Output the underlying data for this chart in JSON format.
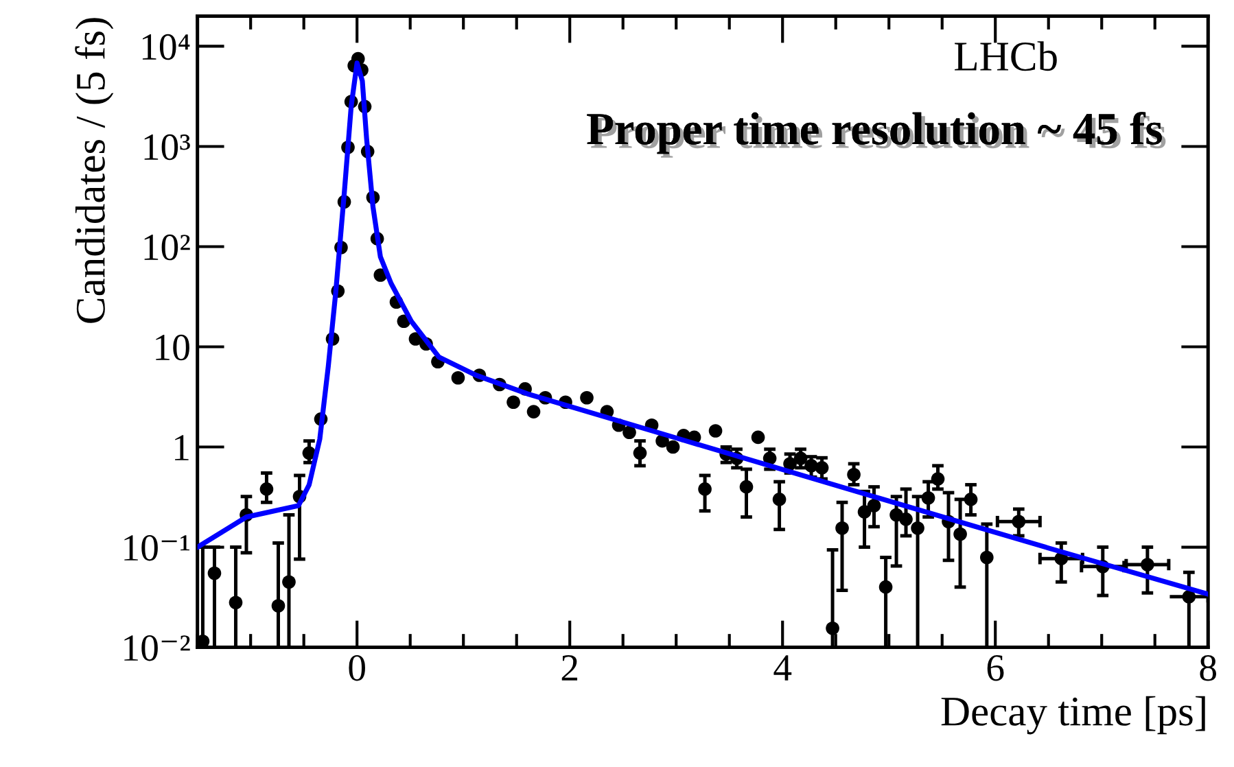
{
  "chart_data": {
    "type": "scatter",
    "xlabel": "Decay time [ps]",
    "ylabel": "Candidates / (5 fs)",
    "annotations": [
      "LHCb",
      "Proper time resolution ~ 45 fs"
    ],
    "xlim": [
      -1.5,
      8
    ],
    "xticks": [
      0,
      2,
      4,
      6,
      8
    ],
    "ylim": [
      0.01,
      20000
    ],
    "yticks": [
      {
        "value": 0.01,
        "label": "10⁻²"
      },
      {
        "value": 0.1,
        "label": "10⁻¹"
      },
      {
        "value": 1,
        "label": "1"
      },
      {
        "value": 10,
        "label": "10"
      },
      {
        "value": 100,
        "label": "10²"
      },
      {
        "value": 1000,
        "label": "10³"
      },
      {
        "value": 10000,
        "label": "10⁴"
      }
    ],
    "log": true,
    "grid": false,
    "legend": false,
    "series": [
      {
        "color": "#000000",
        "marker": "circle",
        "x": [
          -1.45,
          -1.34,
          -1.14,
          -1.04,
          -0.85,
          -0.74,
          -0.64,
          -0.54,
          -0.45,
          -0.34,
          -0.23,
          -0.18,
          -0.15,
          -0.12,
          -0.085,
          -0.055,
          -0.026,
          0.01,
          0.044,
          0.073,
          0.1,
          0.15,
          0.19,
          0.22,
          0.37,
          0.44,
          0.55,
          0.65,
          0.76,
          0.95,
          1.15,
          1.34,
          1.47,
          1.58,
          1.66,
          1.77,
          1.96,
          2.16,
          2.35,
          2.46,
          2.56,
          2.66,
          2.77,
          2.87,
          2.97,
          3.07,
          3.17,
          3.27,
          3.37,
          3.47,
          3.57,
          3.66,
          3.77,
          3.88,
          3.97,
          4.07,
          4.17,
          4.27,
          4.37,
          4.47,
          4.56,
          4.67,
          4.77,
          4.86,
          4.97,
          5.07,
          5.16,
          5.27,
          5.37,
          5.46,
          5.56,
          5.67,
          5.77,
          5.92,
          6.22,
          6.62,
          7.01,
          7.43,
          7.82
        ],
        "values": [
          0.0115,
          0.055,
          0.028,
          0.21,
          0.38,
          0.026,
          0.045,
          0.32,
          0.87,
          1.9,
          12,
          36,
          98,
          280,
          980,
          2800,
          6400,
          7500,
          5800,
          2500,
          890,
          310,
          120,
          52,
          28,
          18,
          12,
          10.7,
          7.1,
          4.9,
          5.2,
          4.2,
          2.8,
          3.8,
          2.25,
          3.1,
          2.8,
          3.1,
          2.25,
          1.65,
          1.4,
          0.87,
          1.65,
          1.15,
          1.0,
          1.3,
          1.25,
          0.38,
          1.45,
          0.85,
          0.77,
          0.4,
          1.25,
          0.77,
          0.3,
          0.68,
          0.77,
          0.65,
          0.62,
          0.0155,
          0.155,
          0.53,
          0.225,
          0.26,
          0.04,
          0.21,
          0.19,
          0.155,
          0.31,
          0.48,
          0.18,
          0.135,
          0.3,
          0.079,
          0.18,
          0.077,
          0.064,
          0.067,
          0.032
        ],
        "errors": [
          [
            0.01,
            0.1
          ],
          [
            0.01,
            0.1
          ],
          [
            0.01,
            0.1
          ],
          [
            0.088,
            0.32
          ],
          [
            0.28,
            0.55
          ],
          [
            0.01,
            0.11
          ],
          [
            0.01,
            0.21
          ],
          [
            0.076,
            0.52
          ],
          [
            0.7,
            1.15
          ],
          null,
          null,
          null,
          null,
          null,
          null,
          null,
          null,
          null,
          null,
          null,
          null,
          null,
          null,
          null,
          null,
          null,
          null,
          null,
          null,
          null,
          null,
          null,
          null,
          null,
          null,
          null,
          null,
          null,
          null,
          null,
          null,
          [
            0.65,
            1.15
          ],
          null,
          null,
          null,
          null,
          null,
          [
            0.23,
            0.52
          ],
          null,
          [
            0.7,
            1.0
          ],
          [
            0.62,
            0.95
          ],
          [
            0.2,
            0.6
          ],
          null,
          [
            0.6,
            0.95
          ],
          [
            0.15,
            0.45
          ],
          [
            0.55,
            0.85
          ],
          [
            0.62,
            0.95
          ],
          [
            0.5,
            0.8
          ],
          [
            0.48,
            0.78
          ],
          [
            0.01,
            0.094
          ],
          [
            0.037,
            0.28
          ],
          [
            0.42,
            0.68
          ],
          [
            0.1,
            0.36
          ],
          [
            0.16,
            0.4
          ],
          [
            0.01,
            0.079
          ],
          [
            0.065,
            0.32
          ],
          [
            0.13,
            0.38
          ],
          [
            0.01,
            0.32
          ],
          [
            0.2,
            0.45
          ],
          [
            0.38,
            0.65
          ],
          [
            0.074,
            0.35
          ],
          [
            0.04,
            0.3
          ],
          [
            0.21,
            0.42
          ],
          [
            0.01,
            0.17
          ],
          [
            0.13,
            0.24
          ],
          [
            0.045,
            0.11
          ],
          [
            0.033,
            0.1
          ],
          [
            0.035,
            0.1
          ],
          [
            0.01,
            0.056
          ]
        ],
        "xerrors": [
          null,
          null,
          null,
          null,
          null,
          null,
          null,
          null,
          null,
          null,
          null,
          null,
          null,
          null,
          null,
          null,
          null,
          null,
          null,
          null,
          null,
          null,
          null,
          null,
          null,
          null,
          null,
          null,
          null,
          null,
          null,
          null,
          null,
          null,
          null,
          null,
          null,
          null,
          null,
          null,
          null,
          null,
          null,
          null,
          null,
          null,
          null,
          null,
          null,
          null,
          null,
          null,
          null,
          null,
          null,
          null,
          null,
          null,
          null,
          null,
          null,
          null,
          null,
          null,
          null,
          null,
          null,
          null,
          null,
          null,
          null,
          null,
          null,
          null,
          0.2,
          0.2,
          0.2,
          0.2,
          0.18
        ]
      },
      {
        "type": "line",
        "color": "#0000ff",
        "x": [
          -1.5,
          -1.04,
          -0.55,
          -0.45,
          -0.35,
          -0.27,
          -0.2,
          -0.12,
          -0.055,
          0,
          0.05,
          0.09,
          0.15,
          0.22,
          0.32,
          0.51,
          0.77,
          1.12,
          1.6,
          3,
          4.9,
          6.5,
          8
        ],
        "values": [
          0.1,
          0.2,
          0.26,
          0.42,
          1.2,
          6.4,
          35,
          340,
          2500,
          6800,
          4500,
          1200,
          250,
          79,
          43,
          18,
          7.9,
          5.2,
          3.4,
          1.23,
          0.31,
          0.098,
          0.034
        ]
      }
    ]
  }
}
